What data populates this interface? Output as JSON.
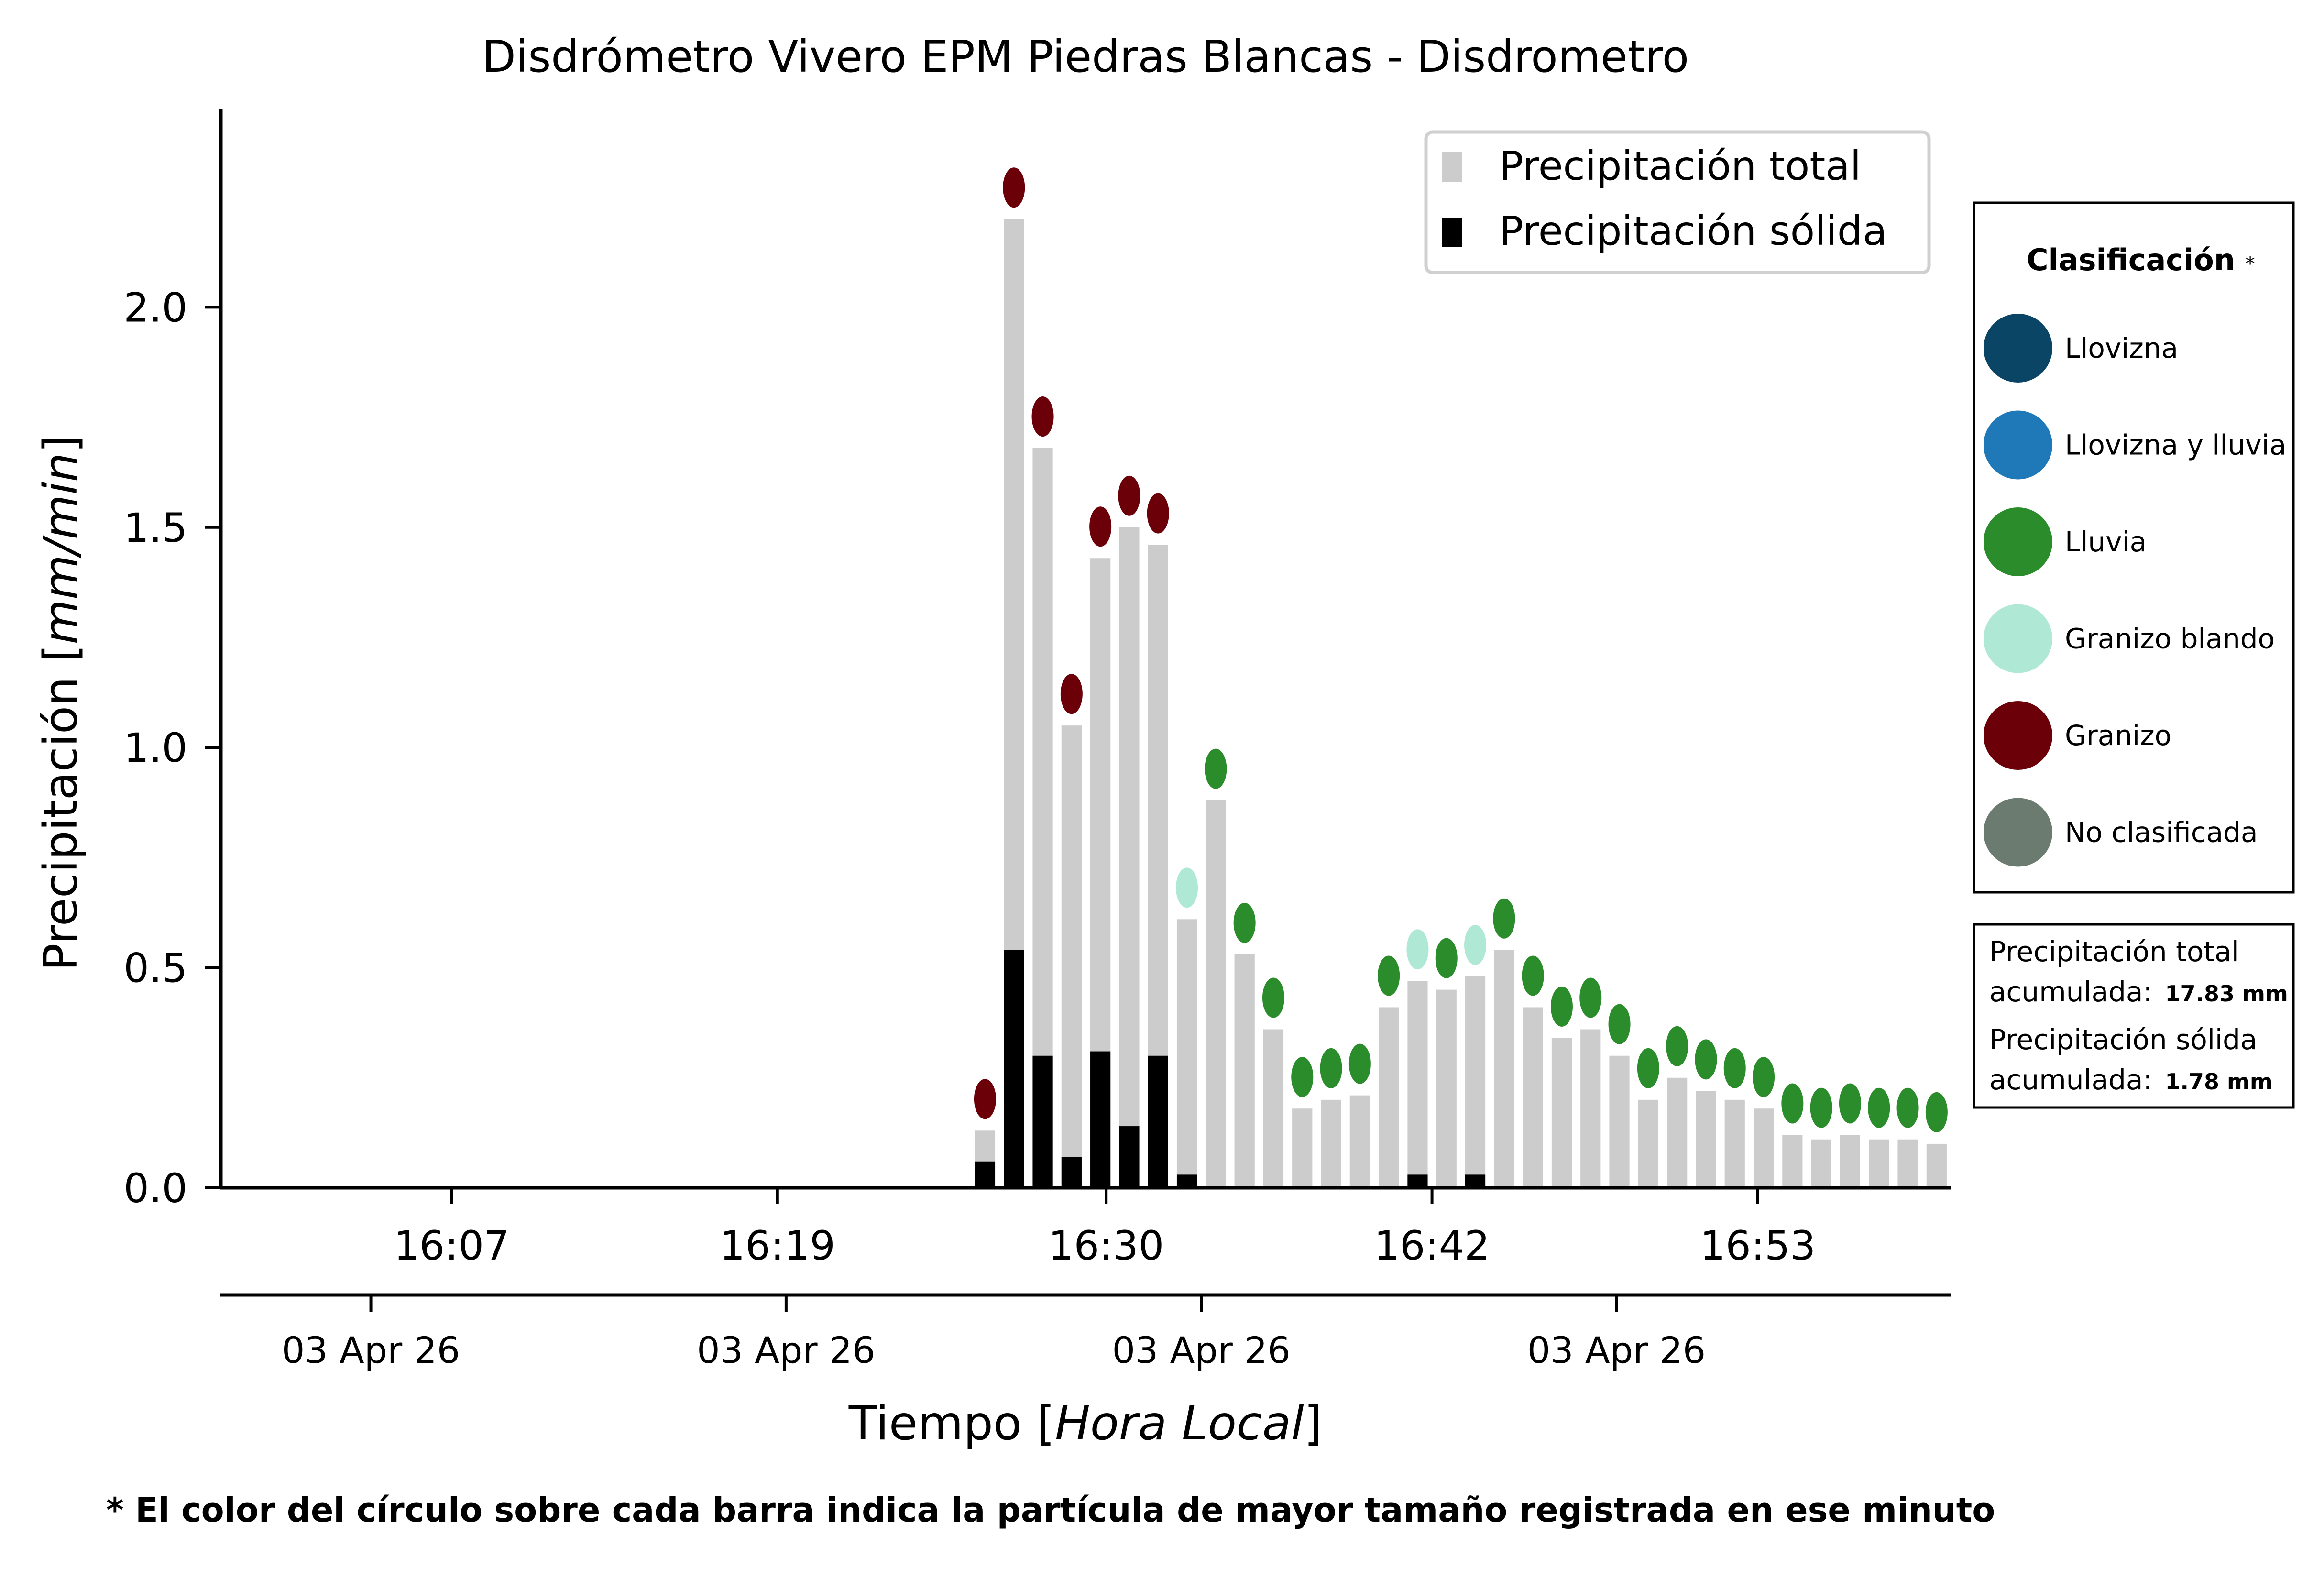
{
  "chart_data": {
    "type": "bar",
    "title": "Disdrómetro Vivero EPM Piedras Blancas - Disdrometro",
    "ylabel": "Precipitación",
    "ylabel_unit": "mm/min",
    "xlabel": "Tiempo",
    "xlabel_unit": "Hora Local",
    "ylim": [
      0,
      2.45
    ],
    "xlim": [
      -0.5,
      59.5
    ],
    "yticks": [
      "0.0",
      "0.5",
      "1.0",
      "1.5",
      "2.0"
    ],
    "xticks": [
      {
        "x": 7.5,
        "label": "16:07"
      },
      {
        "x": 18.8,
        "label": "16:19"
      },
      {
        "x": 30.2,
        "label": "16:30"
      },
      {
        "x": 41.5,
        "label": "16:42"
      },
      {
        "x": 52.8,
        "label": "16:53"
      }
    ],
    "date_ticks": [
      {
        "x": 4.7,
        "label": "03 Apr 26"
      },
      {
        "x": 19.1,
        "label": "03 Apr 26"
      },
      {
        "x": 33.5,
        "label": "03 Apr 26"
      },
      {
        "x": 47.9,
        "label": "03 Apr 26"
      }
    ],
    "bar_x": [
      26,
      27,
      28,
      29,
      30,
      31,
      32,
      33,
      34,
      35,
      36,
      37,
      38,
      39,
      40,
      41,
      42,
      43,
      44,
      45,
      46,
      47,
      48,
      49,
      50,
      51,
      52,
      53,
      54,
      55,
      56,
      57,
      58,
      59
    ],
    "series": [
      {
        "name": "Precipitación total",
        "color": "#cccccc",
        "values": [
          0.13,
          2.2,
          1.68,
          1.05,
          1.43,
          1.5,
          1.46,
          0.61,
          0.88,
          0.53,
          0.36,
          0.18,
          0.2,
          0.21,
          0.41,
          0.47,
          0.45,
          0.48,
          0.54,
          0.41,
          0.34,
          0.36,
          0.3,
          0.2,
          0.25,
          0.22,
          0.2,
          0.18,
          0.12,
          0.11,
          0.12,
          0.11,
          0.11,
          0.1
        ]
      },
      {
        "name": "Precipitación sólida",
        "color": "#000000",
        "values": [
          0.06,
          0.54,
          0.3,
          0.07,
          0.31,
          0.14,
          0.3,
          0.03,
          0,
          0,
          0,
          0,
          0,
          0,
          0,
          0.03,
          0,
          0.03,
          0,
          0,
          0,
          0,
          0,
          0,
          0,
          0,
          0,
          0,
          0,
          0,
          0,
          0,
          0,
          0
        ]
      }
    ],
    "classification": [
      "Granizo",
      "Granizo",
      "Granizo",
      "Granizo",
      "Granizo",
      "Granizo",
      "Granizo",
      "Granizo blando",
      "Lluvia",
      "Lluvia",
      "Lluvia",
      "Lluvia",
      "Lluvia",
      "Lluvia",
      "Lluvia",
      "Granizo blando",
      "Lluvia",
      "Granizo blando",
      "Lluvia",
      "Lluvia",
      "Lluvia",
      "Lluvia",
      "Lluvia",
      "Lluvia",
      "Lluvia",
      "Lluvia",
      "Lluvia",
      "Lluvia",
      "Lluvia",
      "Lluvia",
      "Lluvia",
      "Lluvia",
      "Lluvia",
      "Lluvia"
    ],
    "legend": {
      "position": "top-right",
      "entries": [
        {
          "label": "Precipitación total",
          "color": "#cccccc"
        },
        {
          "label": "Precipitación sólida",
          "color": "#000000"
        }
      ]
    },
    "classes_legend": {
      "title": "Clasificación",
      "title_mark": "*",
      "entries": [
        {
          "label": "Llovizna",
          "color": "#0b4566"
        },
        {
          "label": "Llovizna y lluvia",
          "color": "#1f78b8"
        },
        {
          "label": "Lluvia",
          "color": "#2b8c2b"
        },
        {
          "label": "Granizo blando",
          "color": "#b0e8d6"
        },
        {
          "label": "Granizo",
          "color": "#6b0009"
        },
        {
          "label": "No clasificada",
          "color": "#6b7b70"
        }
      ]
    },
    "accumulated": [
      {
        "label_line1": "Precipitación total",
        "label_line2": "acumulada:",
        "value": "17.83 mm"
      },
      {
        "label_line1": "Precipitación sólida",
        "label_line2": "acumulada:",
        "value": "1.78 mm"
      }
    ],
    "footnote": "* El color del círculo sobre cada barra indica la partícula de mayor tamaño registrada en ese minuto",
    "grid": false
  }
}
